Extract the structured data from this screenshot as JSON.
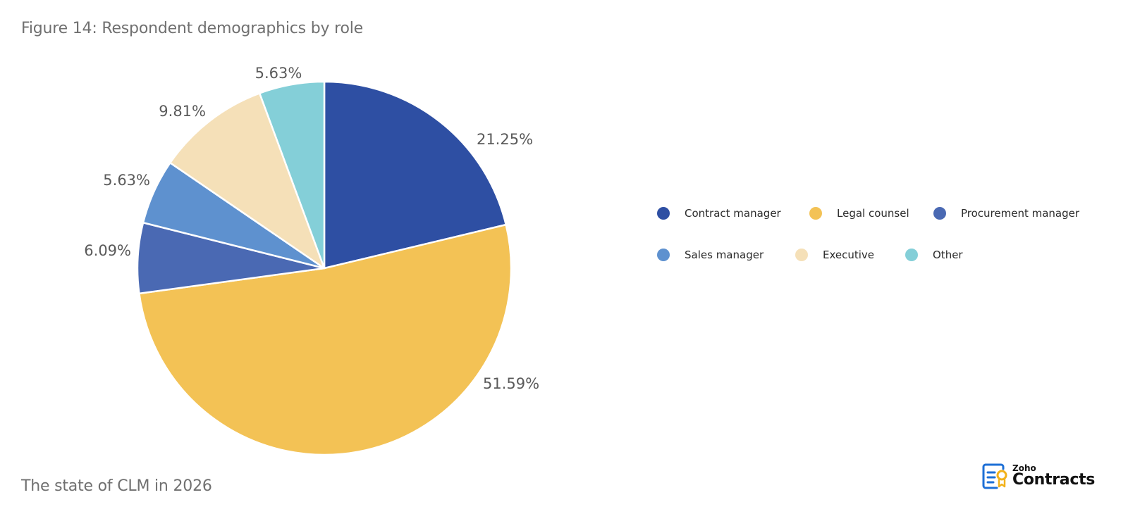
{
  "header": {
    "title": "Figure 14: Respondent demographics by role"
  },
  "footer": {
    "text": "The state of CLM in 2026"
  },
  "logo": {
    "brand_small": "Zoho",
    "brand_large": "Contracts",
    "icon": "contract-document-icon"
  },
  "legend": {
    "rows": [
      [
        {
          "label": "Contract manager",
          "color": "#2E4FA3"
        },
        {
          "label": "Legal counsel",
          "color": "#F3C255"
        },
        {
          "label": "Procurement manager",
          "color": "#4A69B3"
        }
      ],
      [
        {
          "label": "Sales manager",
          "color": "#5E91CF"
        },
        {
          "label": "Executive",
          "color": "#F5E0B8"
        },
        {
          "label": "Other",
          "color": "#84CFD8"
        }
      ]
    ]
  },
  "chart_data": {
    "type": "pie",
    "title": "Figure 14: Respondent demographics by role",
    "start_angle": "12 o'clock, clockwise",
    "legend_position": "right",
    "slices": [
      {
        "label": "Contract manager",
        "value": 21.25,
        "display": "21.25%",
        "color": "#2E4FA3"
      },
      {
        "label": "Legal counsel",
        "value": 51.59,
        "display": "51.59%",
        "color": "#F3C255"
      },
      {
        "label": "Procurement manager",
        "value": 6.09,
        "display": "6.09%",
        "color": "#4A69B3"
      },
      {
        "label": "Sales manager",
        "value": 5.63,
        "display": "5.63%",
        "color": "#5E91CF"
      },
      {
        "label": "Executive",
        "value": 9.81,
        "display": "9.81%",
        "color": "#F5E0B8"
      },
      {
        "label": "Other",
        "value": 5.63,
        "display": "5.63%",
        "color": "#84CFD8"
      }
    ]
  }
}
